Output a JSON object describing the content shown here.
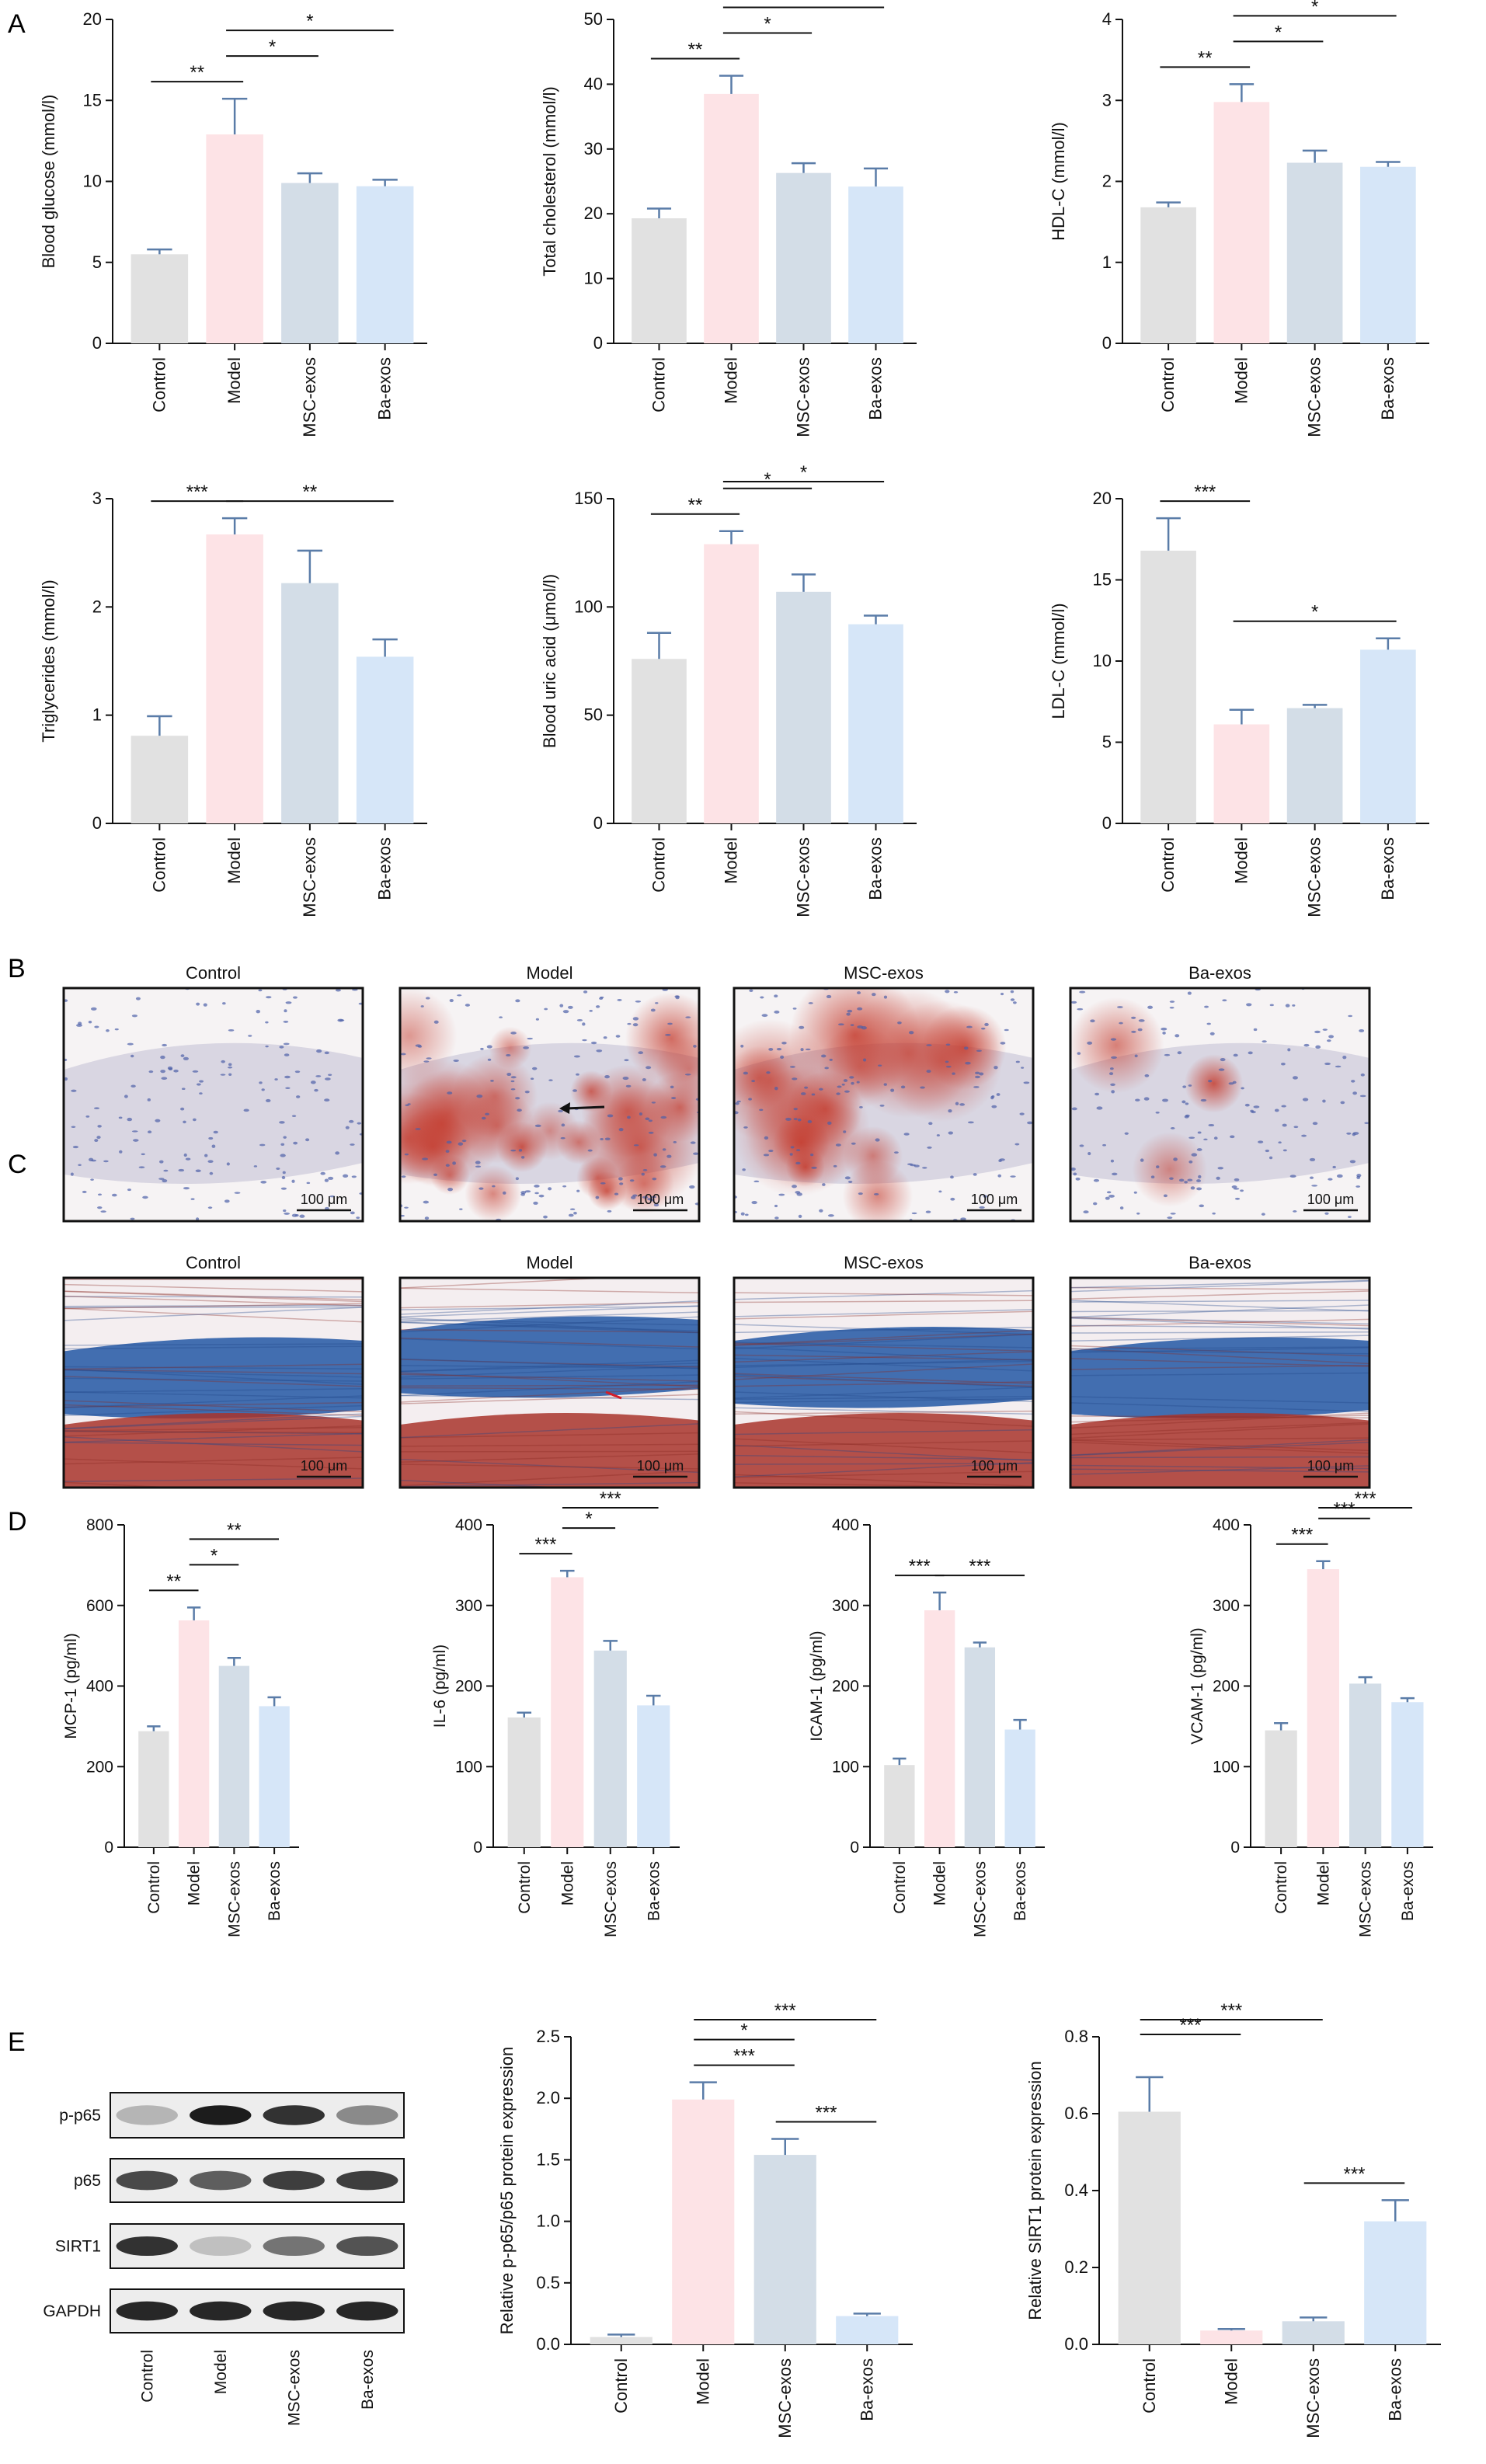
{
  "colors": {
    "control": "#e1e1e1",
    "model": "#fde3e6",
    "msc_exos": "#d3dde7",
    "ba_exos": "#d6e6f8",
    "error_bar": "#5a7ca8",
    "axis": "#111111"
  },
  "panel_letters": {
    "a": "A",
    "b": "B",
    "c": "C",
    "d": "D",
    "e": "E"
  },
  "histology": {
    "labels": [
      "Control",
      "Model",
      "MSC-exos",
      "Ba-exos"
    ],
    "scale": "100 μm"
  },
  "western_blot": {
    "bands": [
      "p-p65",
      "p65",
      "SIRT1",
      "GAPDH"
    ],
    "lanes": [
      "Control",
      "Model",
      "MSC-exos",
      "Ba-exos"
    ],
    "intensities": [
      [
        0.25,
        0.95,
        0.85,
        0.45
      ],
      [
        0.75,
        0.65,
        0.8,
        0.8
      ],
      [
        0.85,
        0.2,
        0.55,
        0.7
      ],
      [
        0.9,
        0.9,
        0.9,
        0.9
      ]
    ]
  },
  "chart_data": [
    {
      "id": "a1",
      "type": "bar",
      "categories": [
        "Control",
        "Model",
        "MSC-exos",
        "Ba-exos"
      ],
      "values": [
        5.5,
        12.9,
        9.9,
        9.7
      ],
      "errors": [
        0.3,
        2.2,
        0.6,
        0.4
      ],
      "ylabel": "Blood glucose (mmol/l)",
      "ylim": [
        0,
        20
      ],
      "yticks": [
        "0",
        "5",
        "10",
        "15",
        "20"
      ],
      "significance": [
        {
          "from": 0,
          "to": 1,
          "label": "**",
          "level": 0
        },
        {
          "from": 1,
          "to": 2,
          "label": "*",
          "level": 1
        },
        {
          "from": 1,
          "to": 3,
          "label": "*",
          "level": 2
        }
      ]
    },
    {
      "id": "a2",
      "type": "bar",
      "categories": [
        "Control",
        "Model",
        "MSC-exos",
        "Ba-exos"
      ],
      "values": [
        19.3,
        38.5,
        26.3,
        24.2
      ],
      "errors": [
        1.5,
        2.8,
        1.5,
        2.8
      ],
      "ylabel": "Total cholesterol (mmol/l)",
      "ylim": [
        0,
        50
      ],
      "yticks": [
        "0",
        "10",
        "20",
        "30",
        "40",
        "50"
      ],
      "significance": [
        {
          "from": 0,
          "to": 1,
          "label": "**",
          "level": 0
        },
        {
          "from": 1,
          "to": 2,
          "label": "*",
          "level": 1
        },
        {
          "from": 1,
          "to": 3,
          "label": "*",
          "level": 2
        }
      ]
    },
    {
      "id": "a3",
      "type": "bar",
      "categories": [
        "Control",
        "Model",
        "MSC-exos",
        "Ba-exos"
      ],
      "values": [
        1.68,
        2.98,
        2.23,
        2.18
      ],
      "errors": [
        0.06,
        0.22,
        0.15,
        0.06
      ],
      "ylabel": "HDL-C (mmol/l)",
      "ylim": [
        0,
        4
      ],
      "yticks": [
        "0",
        "1",
        "2",
        "3",
        "4"
      ],
      "significance": [
        {
          "from": 0,
          "to": 1,
          "label": "**",
          "level": 0
        },
        {
          "from": 1,
          "to": 2,
          "label": "*",
          "level": 1
        },
        {
          "from": 1,
          "to": 3,
          "label": "*",
          "level": 2
        }
      ]
    },
    {
      "id": "a4",
      "type": "bar",
      "categories": [
        "Control",
        "Model",
        "MSC-exos",
        "Ba-exos"
      ],
      "values": [
        0.81,
        2.67,
        2.22,
        1.54
      ],
      "errors": [
        0.18,
        0.15,
        0.3,
        0.16
      ],
      "ylabel": "Triglycerides (mmol/l)",
      "ylim": [
        0,
        3
      ],
      "yticks": [
        "0",
        "1",
        "2",
        "3"
      ],
      "significance": [
        {
          "from": 0,
          "to": 1,
          "label": "***",
          "level": 0
        },
        {
          "from": 1,
          "to": 3,
          "label": "**",
          "level": 0
        }
      ]
    },
    {
      "id": "a5",
      "type": "bar",
      "categories": [
        "Control",
        "Model",
        "MSC-exos",
        "Ba-exos"
      ],
      "values": [
        76,
        129,
        107,
        92
      ],
      "errors": [
        12,
        6,
        8,
        4
      ],
      "ylabel": "Blood uric acid (μmol/l)",
      "ylim": [
        0,
        150
      ],
      "yticks": [
        "0",
        "50",
        "100",
        "150"
      ],
      "significance": [
        {
          "from": 0,
          "to": 1,
          "label": "**",
          "level": 0
        },
        {
          "from": 1,
          "to": 2,
          "label": "*",
          "level": 1
        },
        {
          "from": 1,
          "to": 3,
          "label": "*",
          "level": 2
        }
      ]
    },
    {
      "id": "a6",
      "type": "bar",
      "categories": [
        "Control",
        "Model",
        "MSC-exos",
        "Ba-exos"
      ],
      "values": [
        16.8,
        6.1,
        7.1,
        10.7
      ],
      "errors": [
        2.0,
        0.9,
        0.2,
        0.7
      ],
      "ylabel": "LDL-C (mmol/l)",
      "ylim": [
        0,
        20
      ],
      "yticks": [
        "0",
        "5",
        "10",
        "15",
        "20"
      ],
      "significance": [
        {
          "from": 0,
          "to": 1,
          "label": "***",
          "level": 0
        },
        {
          "from": 1,
          "to": 3,
          "label": "*",
          "level": 0
        }
      ]
    },
    {
      "id": "d1",
      "type": "bar",
      "categories": [
        "Control",
        "Model",
        "MSC-exos",
        "Ba-exos"
      ],
      "values": [
        288,
        563,
        450,
        350
      ],
      "errors": [
        12,
        32,
        20,
        22
      ],
      "ylabel": "MCP-1 (pg/ml)",
      "ylim": [
        0,
        800
      ],
      "yticks": [
        "0",
        "200",
        "400",
        "600",
        "800"
      ],
      "significance": [
        {
          "from": 0,
          "to": 1,
          "label": "**",
          "level": 0
        },
        {
          "from": 1,
          "to": 2,
          "label": "*",
          "level": 1
        },
        {
          "from": 1,
          "to": 3,
          "label": "**",
          "level": 2
        }
      ]
    },
    {
      "id": "d2",
      "type": "bar",
      "categories": [
        "Control",
        "Model",
        "MSC-exos",
        "Ba-exos"
      ],
      "values": [
        161,
        335,
        244,
        176
      ],
      "errors": [
        6,
        8,
        12,
        12
      ],
      "ylabel": "IL-6 (pg/ml)",
      "ylim": [
        0,
        400
      ],
      "yticks": [
        "0",
        "100",
        "200",
        "300",
        "400"
      ],
      "significance": [
        {
          "from": 0,
          "to": 1,
          "label": "***",
          "level": 0
        },
        {
          "from": 1,
          "to": 2,
          "label": "*",
          "level": 1
        },
        {
          "from": 1,
          "to": 3,
          "label": "***",
          "level": 2
        }
      ]
    },
    {
      "id": "d3",
      "type": "bar",
      "categories": [
        "Control",
        "Model",
        "MSC-exos",
        "Ba-exos"
      ],
      "values": [
        102,
        294,
        248,
        146
      ],
      "errors": [
        8,
        22,
        6,
        12
      ],
      "ylabel": "ICAM-1 (pg/ml)",
      "ylim": [
        0,
        400
      ],
      "yticks": [
        "0",
        "100",
        "200",
        "300",
        "400"
      ],
      "significance": [
        {
          "from": 0,
          "to": 1,
          "label": "***",
          "level": 0
        },
        {
          "from": 1,
          "to": 3,
          "label": "***",
          "level": 0
        }
      ]
    },
    {
      "id": "d4",
      "type": "bar",
      "categories": [
        "Control",
        "Model",
        "MSC-exos",
        "Ba-exos"
      ],
      "values": [
        145,
        345,
        203,
        180
      ],
      "errors": [
        9,
        10,
        8,
        5
      ],
      "ylabel": "VCAM-1 (pg/ml)",
      "ylim": [
        0,
        400
      ],
      "yticks": [
        "0",
        "100",
        "200",
        "300",
        "400"
      ],
      "significance": [
        {
          "from": 0,
          "to": 1,
          "label": "***",
          "level": 0
        },
        {
          "from": 1,
          "to": 2,
          "label": "***",
          "level": 1
        },
        {
          "from": 1,
          "to": 3,
          "label": "***",
          "level": 2
        }
      ]
    },
    {
      "id": "e1",
      "type": "bar",
      "categories": [
        "Control",
        "Model",
        "MSC-exos",
        "Ba-exos"
      ],
      "values": [
        0.06,
        1.99,
        1.54,
        0.23
      ],
      "errors": [
        0.02,
        0.14,
        0.13,
        0.02
      ],
      "ylabel": "Relative p-p65/p65 protein expression",
      "ylim": [
        0,
        2.5
      ],
      "yticks": [
        "0.0",
        "0.5",
        "1.0",
        "1.5",
        "2.0",
        "2.5"
      ],
      "significance": [
        {
          "from": 1,
          "to": 2,
          "label": "***",
          "level": 0
        },
        {
          "from": 2,
          "to": 3,
          "label": "***",
          "level": 0
        },
        {
          "from": 1,
          "to": 2,
          "label": "*",
          "level": 1
        },
        {
          "from": 1,
          "to": 3,
          "label": "***",
          "level": 2
        }
      ]
    },
    {
      "id": "e2",
      "type": "bar",
      "categories": [
        "Control",
        "Model",
        "MSC-exos",
        "Ba-exos"
      ],
      "values": [
        0.605,
        0.036,
        0.06,
        0.32
      ],
      "errors": [
        0.09,
        0.004,
        0.01,
        0.055
      ],
      "ylabel": "Relative SIRT1 protein expression",
      "ylim": [
        0,
        0.8
      ],
      "yticks": [
        "0.0",
        "0.2",
        "0.4",
        "0.6",
        "0.8"
      ],
      "significance": [
        {
          "from": 2,
          "to": 3,
          "label": "***",
          "level": 0
        },
        {
          "from": 0,
          "to": 1,
          "label": "***",
          "level": 1
        },
        {
          "from": 0,
          "to": 2,
          "label": "***",
          "level": 2
        }
      ]
    }
  ]
}
